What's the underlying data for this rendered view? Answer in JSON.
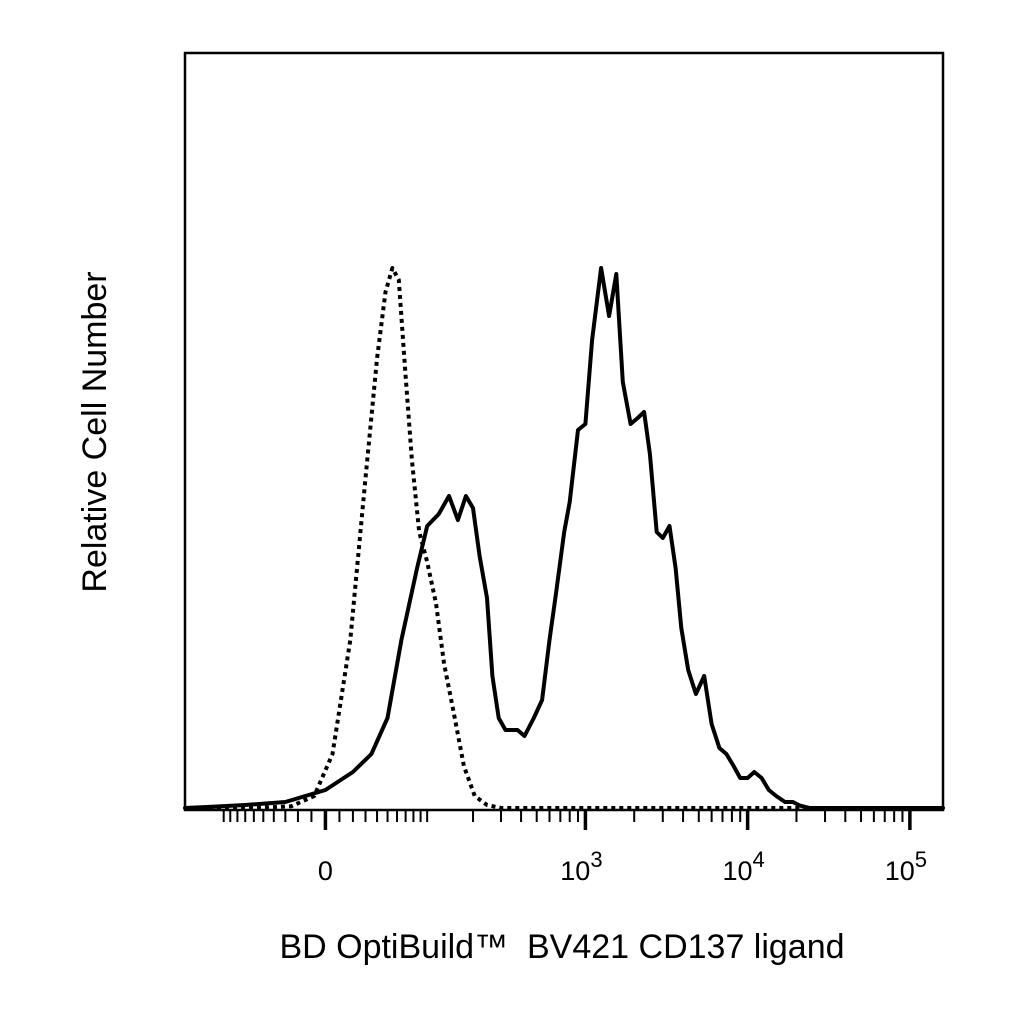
{
  "chart_data": {
    "type": "line",
    "title": "",
    "xlabel": "BD OptiBuild™  BV421 CD137 ligand",
    "ylabel": "Relative Cell Number",
    "x_scale": "biexponential",
    "xlim": [
      -180,
      160000
    ],
    "ylim": [
      0,
      100
    ],
    "grid": false,
    "legend": "none",
    "x_ticks": [
      {
        "value": 0,
        "label": "0",
        "exp": ""
      },
      {
        "value": 1000,
        "label": "10",
        "exp": "3"
      },
      {
        "value": 10000,
        "label": "10",
        "exp": "4"
      },
      {
        "value": 100000,
        "label": "10",
        "exp": "5"
      }
    ],
    "series": [
      {
        "style": "dotted",
        "color": "#000000",
        "x": [
          -180,
          -110,
          -60,
          -25,
          -8,
          5,
          18,
          30,
          40,
          48,
          55,
          62,
          70,
          78,
          88,
          100,
          115,
          130,
          150,
          175,
          205,
          245,
          300,
          360,
          450,
          600,
          800,
          1200,
          2000,
          5000,
          20000,
          160000
        ],
        "y": [
          0,
          0,
          0,
          0.3,
          2,
          9,
          28,
          55,
          75,
          86,
          90,
          88,
          72,
          58,
          46,
          41,
          34,
          24,
          16,
          7,
          2,
          0.5,
          0,
          0,
          0,
          0,
          0,
          0,
          0,
          0,
          0,
          0
        ]
      },
      {
        "style": "solid",
        "color": "#000000",
        "x": [
          -180,
          -120,
          -70,
          -30,
          0,
          20,
          35,
          50,
          65,
          85,
          100,
          120,
          140,
          160,
          180,
          200,
          220,
          245,
          265,
          290,
          320,
          380,
          420,
          480,
          540,
          600,
          660,
          740,
          800,
          900,
          1000,
          1100,
          1250,
          1400,
          1550,
          1700,
          1900,
          2100,
          2300,
          2500,
          2750,
          3000,
          3300,
          3600,
          3900,
          4300,
          4800,
          5400,
          6000,
          6700,
          7400,
          8200,
          9000,
          10000,
          11000,
          12200,
          13500,
          15000,
          17000,
          19000,
          21000,
          24000,
          27000,
          30000,
          35000,
          40000,
          46000,
          55000,
          65000,
          80000,
          100000,
          125000,
          160000
        ],
        "y": [
          0,
          0.2,
          0.5,
          1,
          3,
          6,
          9,
          15,
          28,
          40,
          47,
          49,
          52,
          48,
          52,
          50,
          42,
          35,
          22,
          15,
          13,
          13,
          12,
          15,
          18,
          28,
          36,
          46,
          51,
          63,
          64,
          78,
          90,
          82,
          89,
          71,
          64,
          65,
          66,
          59,
          46,
          45,
          47,
          40,
          30,
          23,
          19,
          22,
          14,
          10,
          9,
          7,
          5,
          5,
          6,
          5,
          3,
          2,
          1,
          1,
          0.4,
          0,
          0,
          0,
          0,
          0,
          0,
          0,
          0,
          0,
          0,
          0,
          0
        ]
      }
    ]
  }
}
